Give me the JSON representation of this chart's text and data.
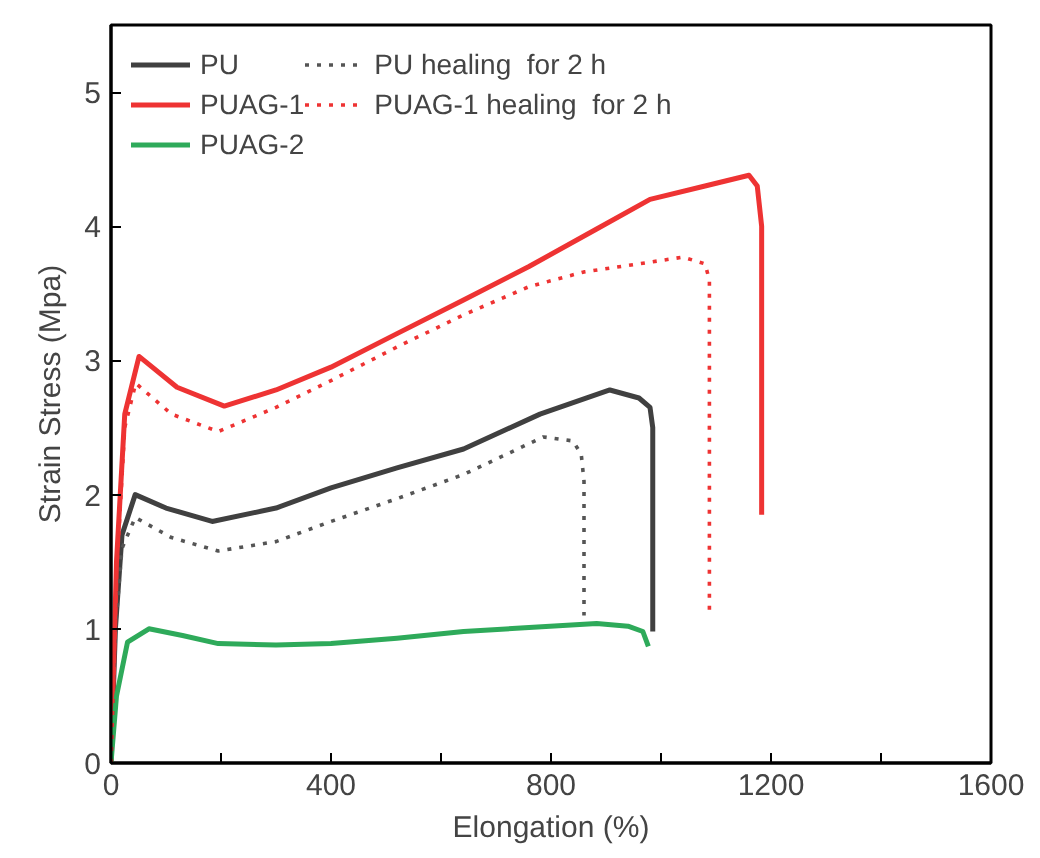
{
  "chart_data": {
    "type": "line",
    "xlabel": "Elongation (%)",
    "ylabel": "Strain Stress (Mpa)",
    "xlim": [
      0,
      1600
    ],
    "ylim": [
      0,
      5.5
    ],
    "xticks": [
      0,
      {
        "value": 200,
        "label": null
      },
      400,
      {
        "value": 600,
        "label": null
      },
      800,
      {
        "value": 1000,
        "label": null
      },
      1200,
      {
        "value": 1400,
        "label": null
      },
      1600
    ],
    "yticks": [
      0,
      1,
      2,
      3,
      4,
      5
    ],
    "grid": false,
    "legend": "top left",
    "line_style": "solid",
    "series": [
      {
        "name": "PU",
        "color": "#404040",
        "x": [
          0,
          8,
          20,
          44,
          100,
          184,
          300,
          400,
          520,
          641,
          780,
          907,
          960,
          980,
          985,
          985
        ],
        "values": [
          0,
          1.0,
          1.7,
          2.0,
          1.9,
          1.8,
          1.9,
          2.05,
          2.2,
          2.34,
          2.6,
          2.78,
          2.72,
          2.65,
          2.5,
          0.98
        ]
      },
      {
        "name": "PUAG-1",
        "color": "#ee3333",
        "x": [
          0,
          10,
          25,
          51,
          120,
          206,
          300,
          400,
          520,
          641,
          760,
          883,
          980,
          1080,
          1160,
          1175,
          1183,
          1183
        ],
        "values": [
          0,
          1.5,
          2.6,
          3.03,
          2.8,
          2.66,
          2.78,
          2.95,
          3.2,
          3.45,
          3.7,
          3.98,
          4.2,
          4.3,
          4.38,
          4.3,
          4.0,
          1.85
        ]
      },
      {
        "name": "PUAG-2",
        "color": "#2eaa5a",
        "x": [
          0,
          10,
          30,
          69,
          130,
          195,
          300,
          400,
          520,
          641,
          760,
          883,
          940,
          967,
          977
        ],
        "values": [
          0,
          0.5,
          0.9,
          1.0,
          0.95,
          0.89,
          0.88,
          0.89,
          0.93,
          0.98,
          1.01,
          1.04,
          1.02,
          0.98,
          0.87
        ]
      },
      {
        "name": "PU healing  for 2 h",
        "color": "#555555",
        "line_style": "dotted",
        "x": [
          0,
          8,
          20,
          44,
          110,
          195,
          300,
          400,
          520,
          641,
          786,
          840,
          855,
          860,
          860
        ],
        "values": [
          0,
          1.0,
          1.6,
          1.83,
          1.68,
          1.58,
          1.65,
          1.8,
          1.97,
          2.15,
          2.43,
          2.4,
          2.3,
          2.1,
          1.1
        ]
      },
      {
        "name": "PUAG-1 healing  for 2 h",
        "color": "#ee3333",
        "line_style": "dotted",
        "x": [
          0,
          10,
          25,
          45,
          110,
          195,
          300,
          400,
          520,
          641,
          760,
          860,
          960,
          1040,
          1080,
          1088,
          1088
        ],
        "values": [
          0,
          1.4,
          2.5,
          2.83,
          2.6,
          2.47,
          2.65,
          2.85,
          3.1,
          3.34,
          3.55,
          3.66,
          3.72,
          3.77,
          3.72,
          3.6,
          1.1
        ]
      }
    ]
  }
}
